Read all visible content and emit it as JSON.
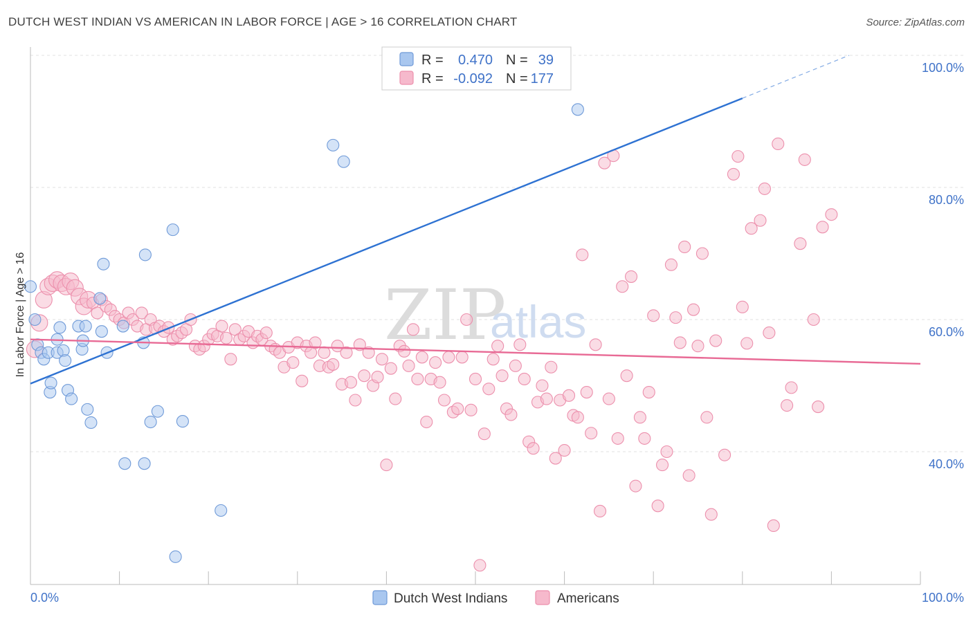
{
  "header": {
    "title": "DUTCH WEST INDIAN VS AMERICAN IN LABOR FORCE | AGE > 16 CORRELATION CHART",
    "source": "Source: ZipAtlas.com"
  },
  "stats_box": {
    "row1": {
      "r_label": "R =",
      "r_value": "0.470",
      "n_label": "N =",
      "n_value": "39"
    },
    "row2": {
      "r_label": "R =",
      "r_value": "-0.092",
      "n_label": "N =",
      "n_value": "177"
    }
  },
  "watermark": {
    "zip": "ZIP",
    "atlas": "atlas"
  },
  "colors": {
    "blue_fill": "#a9c7ef",
    "blue_stroke": "#6f9ad8",
    "blue_line": "#2e72d2",
    "pink_fill": "#f6b9cc",
    "pink_stroke": "#ec8fac",
    "pink_line": "#e86a95",
    "grid": "#e0e0e0",
    "tick_text": "#3f72c8"
  },
  "chart_data": {
    "type": "scatter",
    "title": "DUTCH WEST INDIAN VS AMERICAN IN LABOR FORCE | AGE > 16 CORRELATION CHART",
    "xlabel": "",
    "ylabel": "In Labor Force | Age > 16",
    "xlim": [
      0,
      100
    ],
    "ylim": [
      20,
      102
    ],
    "x_tick_labels": [
      "0.0%",
      "100.0%"
    ],
    "y_ticks": [
      40,
      60,
      80,
      100
    ],
    "y_tick_labels": [
      "40.0%",
      "60.0%",
      "80.0%",
      "100.0%"
    ],
    "grid": true,
    "legend": [
      {
        "name": "Dutch West Indians",
        "color": "#a9c7ef"
      },
      {
        "name": "Americans",
        "color": "#f6b9cc"
      }
    ],
    "series": [
      {
        "name": "Dutch West Indians",
        "r": 0.47,
        "n": 39,
        "trend": {
          "x0": 0,
          "y0": 50.3,
          "x1": 80,
          "y1": 93.5,
          "dash_to_x": 92,
          "dash_to_y": 100
        },
        "points": [
          [
            0.0,
            65.0
          ],
          [
            0.5,
            60.0
          ],
          [
            0.8,
            56.2
          ],
          [
            1.2,
            55.0
          ],
          [
            1.5,
            54.0
          ],
          [
            2.0,
            55.0
          ],
          [
            2.2,
            49.0
          ],
          [
            2.3,
            50.4
          ],
          [
            3.0,
            55.0
          ],
          [
            3.0,
            57.0
          ],
          [
            3.3,
            58.8
          ],
          [
            3.7,
            55.3
          ],
          [
            3.9,
            53.8
          ],
          [
            4.2,
            49.3
          ],
          [
            4.6,
            48.0
          ],
          [
            5.4,
            59.0
          ],
          [
            5.8,
            55.5
          ],
          [
            5.9,
            56.8
          ],
          [
            6.2,
            59.0
          ],
          [
            6.4,
            46.4
          ],
          [
            6.8,
            44.4
          ],
          [
            7.8,
            63.2
          ],
          [
            8.0,
            58.2
          ],
          [
            8.2,
            68.4
          ],
          [
            8.6,
            55.0
          ],
          [
            10.4,
            59.0
          ],
          [
            10.6,
            38.2
          ],
          [
            12.7,
            56.5
          ],
          [
            12.8,
            38.2
          ],
          [
            12.9,
            69.8
          ],
          [
            13.5,
            44.5
          ],
          [
            14.3,
            46.1
          ],
          [
            16.0,
            73.6
          ],
          [
            16.3,
            24.1
          ],
          [
            17.1,
            44.6
          ],
          [
            21.4,
            31.1
          ],
          [
            34.0,
            86.4
          ],
          [
            35.2,
            83.9
          ],
          [
            61.5,
            91.8
          ]
        ]
      },
      {
        "name": "Americans",
        "r": -0.092,
        "n": 177,
        "trend": {
          "x0": 0,
          "y0": 57.0,
          "x1": 100,
          "y1": 53.3
        },
        "points": [
          [
            0.5,
            55.5
          ],
          [
            1.0,
            59.5
          ],
          [
            1.5,
            63.0
          ],
          [
            2.0,
            65.0
          ],
          [
            2.5,
            65.5
          ],
          [
            3.0,
            66.0
          ],
          [
            3.5,
            65.5
          ],
          [
            4.0,
            65.0
          ],
          [
            4.5,
            65.8
          ],
          [
            5.0,
            64.8
          ],
          [
            5.5,
            63.5
          ],
          [
            6.0,
            62.0
          ],
          [
            6.5,
            63.0
          ],
          [
            7.0,
            62.5
          ],
          [
            7.5,
            61.0
          ],
          [
            8.0,
            63.0
          ],
          [
            8.5,
            62.0
          ],
          [
            9.0,
            61.5
          ],
          [
            9.5,
            60.5
          ],
          [
            10.0,
            60.0
          ],
          [
            10.5,
            59.5
          ],
          [
            11.0,
            61.0
          ],
          [
            11.5,
            60.0
          ],
          [
            12.0,
            59.0
          ],
          [
            12.5,
            61.0
          ],
          [
            13.0,
            58.5
          ],
          [
            13.5,
            60.0
          ],
          [
            14.0,
            58.7
          ],
          [
            14.5,
            59.0
          ],
          [
            15.0,
            58.2
          ],
          [
            15.5,
            58.8
          ],
          [
            16.0,
            57.0
          ],
          [
            16.5,
            57.5
          ],
          [
            17.0,
            58.0
          ],
          [
            17.5,
            58.5
          ],
          [
            18.0,
            60.0
          ],
          [
            18.5,
            56.0
          ],
          [
            19.0,
            55.5
          ],
          [
            19.5,
            56.0
          ],
          [
            20.0,
            57.0
          ],
          [
            20.5,
            57.8
          ],
          [
            21.0,
            57.5
          ],
          [
            21.5,
            59.0
          ],
          [
            22.0,
            57.2
          ],
          [
            22.5,
            54.0
          ],
          [
            23.0,
            58.5
          ],
          [
            23.5,
            57.0
          ],
          [
            24.0,
            57.5
          ],
          [
            24.5,
            58.2
          ],
          [
            25.0,
            56.5
          ],
          [
            25.5,
            57.5
          ],
          [
            26.0,
            57.0
          ],
          [
            26.5,
            58.0
          ],
          [
            27.0,
            56.0
          ],
          [
            27.5,
            55.5
          ],
          [
            28.0,
            55.0
          ],
          [
            28.5,
            52.8
          ],
          [
            29.0,
            55.8
          ],
          [
            29.5,
            53.5
          ],
          [
            30.0,
            56.5
          ],
          [
            30.5,
            50.7
          ],
          [
            31.0,
            56.0
          ],
          [
            31.5,
            55.0
          ],
          [
            32.0,
            56.5
          ],
          [
            32.5,
            53.0
          ],
          [
            33.0,
            55.0
          ],
          [
            33.5,
            52.8
          ],
          [
            34.0,
            53.2
          ],
          [
            34.5,
            56.0
          ],
          [
            35.0,
            50.2
          ],
          [
            35.5,
            55.0
          ],
          [
            36.0,
            50.5
          ],
          [
            36.5,
            47.8
          ],
          [
            37.0,
            56.2
          ],
          [
            37.5,
            51.5
          ],
          [
            38.0,
            55.0
          ],
          [
            38.5,
            50.0
          ],
          [
            39.0,
            51.3
          ],
          [
            39.5,
            54.0
          ],
          [
            40.0,
            38.0
          ],
          [
            40.5,
            52.6
          ],
          [
            41.0,
            48.0
          ],
          [
            41.5,
            56.0
          ],
          [
            42.0,
            55.2
          ],
          [
            42.5,
            53.0
          ],
          [
            43.0,
            58.5
          ],
          [
            43.5,
            51.0
          ],
          [
            44.0,
            54.3
          ],
          [
            44.5,
            44.5
          ],
          [
            45.0,
            51.0
          ],
          [
            45.5,
            53.5
          ],
          [
            46.0,
            50.5
          ],
          [
            46.5,
            47.8
          ],
          [
            47.0,
            54.3
          ],
          [
            47.5,
            46.0
          ],
          [
            48.0,
            46.5
          ],
          [
            48.5,
            54.3
          ],
          [
            49.0,
            60.0
          ],
          [
            49.5,
            46.3
          ],
          [
            50.0,
            51.0
          ],
          [
            50.5,
            22.8
          ],
          [
            51.0,
            42.7
          ],
          [
            51.5,
            49.5
          ],
          [
            52.0,
            54.0
          ],
          [
            52.5,
            56.0
          ],
          [
            53.0,
            51.5
          ],
          [
            53.5,
            46.5
          ],
          [
            54.0,
            45.6
          ],
          [
            54.5,
            53.0
          ],
          [
            55.0,
            56.2
          ],
          [
            55.5,
            51.0
          ],
          [
            56.0,
            41.5
          ],
          [
            56.5,
            40.5
          ],
          [
            57.0,
            47.5
          ],
          [
            57.5,
            50.0
          ],
          [
            58.0,
            48.0
          ],
          [
            58.5,
            52.8
          ],
          [
            59.0,
            39.0
          ],
          [
            59.5,
            47.8
          ],
          [
            60.0,
            40.2
          ],
          [
            60.5,
            48.5
          ],
          [
            61.0,
            45.5
          ],
          [
            61.5,
            45.2
          ],
          [
            62.0,
            69.8
          ],
          [
            62.5,
            49.0
          ],
          [
            63.0,
            42.8
          ],
          [
            63.5,
            56.2
          ],
          [
            64.0,
            31.0
          ],
          [
            64.5,
            83.7
          ],
          [
            65.0,
            48.0
          ],
          [
            65.5,
            84.8
          ],
          [
            66.0,
            42.0
          ],
          [
            66.5,
            65.0
          ],
          [
            67.0,
            51.5
          ],
          [
            67.5,
            66.5
          ],
          [
            68.0,
            34.8
          ],
          [
            68.5,
            45.2
          ],
          [
            69.0,
            42.0
          ],
          [
            69.5,
            49.0
          ],
          [
            70.0,
            60.6
          ],
          [
            70.5,
            31.8
          ],
          [
            71.0,
            38.0
          ],
          [
            71.5,
            40.0
          ],
          [
            72.0,
            68.3
          ],
          [
            72.5,
            60.3
          ],
          [
            73.0,
            56.5
          ],
          [
            73.5,
            71.0
          ],
          [
            74.0,
            36.4
          ],
          [
            74.5,
            61.5
          ],
          [
            75.0,
            56.0
          ],
          [
            75.5,
            70.0
          ],
          [
            76.0,
            45.2
          ],
          [
            76.5,
            30.5
          ],
          [
            77.0,
            56.8
          ],
          [
            78.0,
            39.5
          ],
          [
            79.0,
            82.0
          ],
          [
            79.5,
            84.7
          ],
          [
            80.0,
            61.9
          ],
          [
            80.5,
            56.4
          ],
          [
            81.0,
            73.8
          ],
          [
            82.0,
            75.0
          ],
          [
            82.5,
            79.8
          ],
          [
            83.0,
            58.0
          ],
          [
            83.5,
            28.8
          ],
          [
            84.0,
            86.6
          ],
          [
            85.0,
            47.0
          ],
          [
            85.5,
            49.7
          ],
          [
            86.5,
            71.5
          ],
          [
            87.0,
            84.2
          ],
          [
            88.0,
            60.0
          ],
          [
            89.0,
            74.0
          ],
          [
            90.0,
            75.9
          ],
          [
            88.5,
            46.8
          ]
        ]
      }
    ]
  }
}
